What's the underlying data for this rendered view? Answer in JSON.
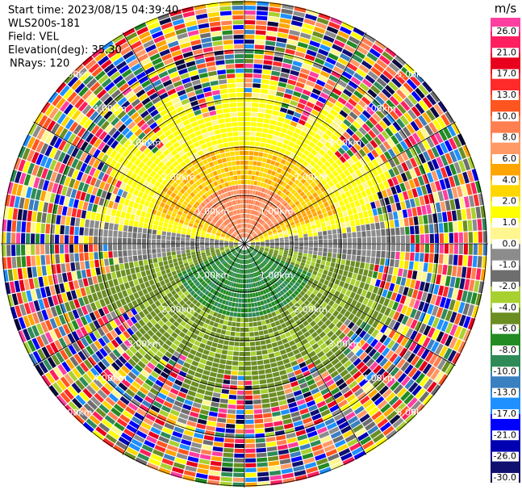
{
  "header": {
    "lines": [
      "Start time: 2023/08/15 04:39:40",
      "WLS200s-181",
      "Field: VEL",
      "Elevation(deg): 35.30",
      "NRays: 120"
    ]
  },
  "range_rings": [
    "1.00km",
    "2.00km",
    "3.00km",
    "4.00km",
    "5.00km"
  ],
  "colorbar": {
    "unit": "m/s",
    "labels": [
      "26.0",
      "21.0",
      "17.0",
      "13.0",
      "10.0",
      "8.0",
      "6.0",
      "4.0",
      "2.0",
      "1.0",
      "0.0",
      "-1.0",
      "-2.0",
      "-4.0",
      "-6.0",
      "-8.0",
      "-10.0",
      "-13.0",
      "-17.0",
      "-21.0",
      "-26.0",
      "-30.0"
    ],
    "colors": [
      "#ff3fa0",
      "#ff1f60",
      "#e8001c",
      "#ff2a2a",
      "#ff5520",
      "#ff7f50",
      "#ff9a66",
      "#ffa500",
      "#ffd700",
      "#ffff00",
      "#fff68f",
      "#8c8c8c",
      "#6e6e6e",
      "#a8d030",
      "#6b8e23",
      "#228b22",
      "#2e8b57",
      "#3a7fc0",
      "#1e90ff",
      "#0000ff",
      "#0000b0",
      "#101070",
      "#0a0a40"
    ]
  }
}
